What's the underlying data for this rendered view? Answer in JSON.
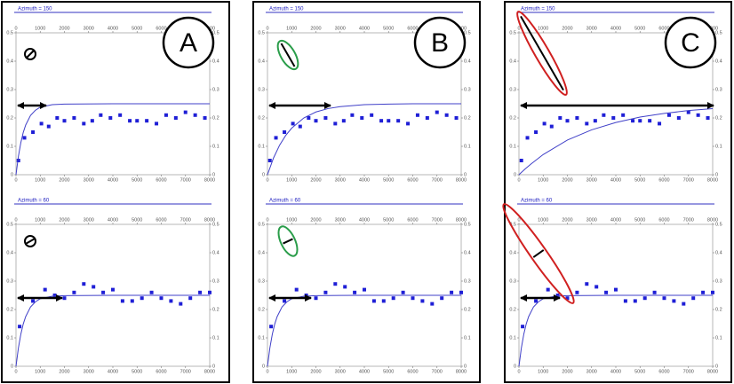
{
  "panel_labels": [
    "A",
    "B",
    "C"
  ],
  "chart_data": [
    {
      "type": "scatter",
      "title": "Azimuth = 150",
      "xlim": [
        0,
        8000
      ],
      "xticks": [
        0,
        1000,
        2000,
        3000,
        4000,
        5000,
        6000,
        7000,
        8000
      ],
      "ylim": [
        0,
        0.5
      ],
      "yticks": [
        0,
        0.1,
        0.2,
        0.3,
        0.4,
        0.5
      ],
      "y2lim": [
        0,
        0.5
      ],
      "y2ticks": [
        0,
        0.1,
        0.2,
        0.3,
        0.4,
        0.5
      ],
      "series": [
        {
          "style": "markers",
          "color": "#1f1fd6",
          "x": [
            100,
            350,
            700,
            1050,
            1350,
            1700,
            2000,
            2400,
            2800,
            3150,
            3500,
            3900,
            4300,
            4700,
            5000,
            5400,
            5800,
            6200,
            6600,
            7000,
            7400,
            7800
          ],
          "values": [
            0.05,
            0.13,
            0.15,
            0.18,
            0.17,
            0.2,
            0.19,
            0.2,
            0.18,
            0.19,
            0.21,
            0.2,
            0.21,
            0.19,
            0.19,
            0.19,
            0.18,
            0.21,
            0.2,
            0.22,
            0.21,
            0.2
          ]
        },
        {
          "style": "line",
          "color": "#4040c8",
          "x": [
            0,
            100,
            200,
            300,
            400,
            600,
            800,
            1000,
            1500,
            2000,
            4000,
            8000
          ],
          "values": [
            0,
            0.065,
            0.113,
            0.149,
            0.175,
            0.209,
            0.227,
            0.238,
            0.247,
            0.249,
            0.25,
            0.25
          ]
        }
      ]
    },
    {
      "type": "scatter",
      "title": "Azimuth = 60",
      "xlim": [
        0,
        8000
      ],
      "xticks": [
        0,
        1000,
        2000,
        3000,
        4000,
        5000,
        6000,
        7000,
        8000
      ],
      "ylim": [
        0,
        0.5
      ],
      "yticks": [
        0,
        0.1,
        0.2,
        0.3,
        0.4,
        0.5
      ],
      "y2lim": [
        0,
        0.5
      ],
      "y2ticks": [
        0,
        0.1,
        0.2,
        0.3,
        0.4,
        0.5
      ],
      "series": [
        {
          "style": "markers",
          "color": "#1f1fd6",
          "x": [
            150,
            700,
            1200,
            1600,
            2000,
            2400,
            2800,
            3200,
            3600,
            4000,
            4400,
            4800,
            5200,
            5600,
            6000,
            6400,
            6800,
            7200,
            7600,
            8000
          ],
          "values": [
            0.14,
            0.23,
            0.27,
            0.25,
            0.24,
            0.26,
            0.29,
            0.28,
            0.26,
            0.27,
            0.23,
            0.23,
            0.24,
            0.26,
            0.24,
            0.23,
            0.22,
            0.24,
            0.26,
            0.26
          ]
        },
        {
          "style": "line",
          "color": "#4040c8",
          "x": [
            0,
            100,
            200,
            300,
            400,
            600,
            800,
            1000,
            1500,
            2000,
            4000,
            8000
          ],
          "values": [
            0,
            0.065,
            0.113,
            0.149,
            0.175,
            0.209,
            0.227,
            0.238,
            0.247,
            0.249,
            0.25,
            0.25
          ]
        }
      ]
    },
    {
      "type": "scatter",
      "title": "Azimuth = 150",
      "xlim": [
        0,
        8000
      ],
      "xticks": [
        0,
        1000,
        2000,
        3000,
        4000,
        5000,
        6000,
        7000,
        8000
      ],
      "ylim": [
        0,
        0.5
      ],
      "yticks": [
        0,
        0.1,
        0.2,
        0.3,
        0.4,
        0.5
      ],
      "y2lim": [
        0,
        0.5
      ],
      "y2ticks": [
        0,
        0.1,
        0.2,
        0.3,
        0.4,
        0.5
      ],
      "series": [
        {
          "style": "markers",
          "color": "#1f1fd6",
          "x": [
            100,
            350,
            700,
            1050,
            1350,
            1700,
            2000,
            2400,
            2800,
            3150,
            3500,
            3900,
            4300,
            4700,
            5000,
            5400,
            5800,
            6200,
            6600,
            7000,
            7400,
            7800
          ],
          "values": [
            0.05,
            0.13,
            0.15,
            0.18,
            0.17,
            0.2,
            0.19,
            0.2,
            0.18,
            0.19,
            0.21,
            0.2,
            0.21,
            0.19,
            0.19,
            0.19,
            0.18,
            0.21,
            0.2,
            0.22,
            0.21,
            0.2
          ]
        },
        {
          "style": "line",
          "color": "#4040c8",
          "x": [
            0,
            250,
            500,
            750,
            1000,
            1500,
            2000,
            2500,
            3000,
            4000,
            5000,
            6000,
            8000
          ],
          "values": [
            0,
            0.059,
            0.104,
            0.138,
            0.164,
            0.2,
            0.221,
            0.233,
            0.24,
            0.247,
            0.249,
            0.25,
            0.25
          ]
        }
      ]
    },
    {
      "type": "scatter",
      "title": "Azimuth = 60",
      "xlim": [
        0,
        8000
      ],
      "xticks": [
        0,
        1000,
        2000,
        3000,
        4000,
        5000,
        6000,
        7000,
        8000
      ],
      "ylim": [
        0,
        0.5
      ],
      "yticks": [
        0,
        0.1,
        0.2,
        0.3,
        0.4,
        0.5
      ],
      "y2lim": [
        0,
        0.5
      ],
      "y2ticks": [
        0,
        0.1,
        0.2,
        0.3,
        0.4,
        0.5
      ],
      "series": [
        {
          "style": "markers",
          "color": "#1f1fd6",
          "x": [
            150,
            700,
            1200,
            1600,
            2000,
            2400,
            2800,
            3200,
            3600,
            4000,
            4400,
            4800,
            5200,
            5600,
            6000,
            6400,
            6800,
            7200,
            7600,
            8000
          ],
          "values": [
            0.14,
            0.23,
            0.27,
            0.25,
            0.24,
            0.26,
            0.29,
            0.28,
            0.26,
            0.27,
            0.23,
            0.23,
            0.24,
            0.26,
            0.24,
            0.23,
            0.22,
            0.24,
            0.26,
            0.26
          ]
        },
        {
          "style": "line",
          "color": "#4040c8",
          "x": [
            0,
            100,
            200,
            300,
            400,
            600,
            800,
            1000,
            1500,
            2000,
            4000,
            8000
          ],
          "values": [
            0,
            0.065,
            0.113,
            0.149,
            0.175,
            0.209,
            0.227,
            0.238,
            0.247,
            0.249,
            0.25,
            0.25
          ]
        }
      ]
    },
    {
      "type": "scatter",
      "title": "Azimuth = 150",
      "xlim": [
        0,
        8000
      ],
      "xticks": [
        0,
        1000,
        2000,
        3000,
        4000,
        5000,
        6000,
        7000,
        8000
      ],
      "ylim": [
        0,
        0.5
      ],
      "yticks": [
        0,
        0.1,
        0.2,
        0.3,
        0.4,
        0.5
      ],
      "y2lim": [
        0,
        0.5
      ],
      "y2ticks": [
        0,
        0.1,
        0.2,
        0.3,
        0.4,
        0.5
      ],
      "series": [
        {
          "style": "markers",
          "color": "#1f1fd6",
          "x": [
            100,
            350,
            700,
            1050,
            1350,
            1700,
            2000,
            2400,
            2800,
            3150,
            3500,
            3900,
            4300,
            4700,
            5000,
            5400,
            5800,
            6200,
            6600,
            7000,
            7400,
            7800
          ],
          "values": [
            0.05,
            0.13,
            0.15,
            0.18,
            0.17,
            0.2,
            0.19,
            0.2,
            0.18,
            0.19,
            0.21,
            0.2,
            0.21,
            0.19,
            0.19,
            0.19,
            0.18,
            0.21,
            0.2,
            0.22,
            0.21,
            0.2
          ]
        },
        {
          "style": "line",
          "color": "#4040c8",
          "x": [
            0,
            250,
            500,
            1000,
            2000,
            3000,
            4000,
            5000,
            6000,
            7000,
            8000
          ],
          "values": [
            0,
            0.02,
            0.038,
            0.071,
            0.122,
            0.158,
            0.184,
            0.203,
            0.216,
            0.226,
            0.233
          ]
        }
      ]
    },
    {
      "type": "scatter",
      "title": "Azimuth = 60",
      "xlim": [
        0,
        8000
      ],
      "xticks": [
        0,
        1000,
        2000,
        3000,
        4000,
        5000,
        6000,
        7000,
        8000
      ],
      "ylim": [
        0,
        0.5
      ],
      "yticks": [
        0,
        0.1,
        0.2,
        0.3,
        0.4,
        0.5
      ],
      "y2lim": [
        0,
        0.5
      ],
      "y2ticks": [
        0,
        0.1,
        0.2,
        0.3,
        0.4,
        0.5
      ],
      "series": [
        {
          "style": "markers",
          "color": "#1f1fd6",
          "x": [
            150,
            700,
            1200,
            1600,
            2000,
            2400,
            2800,
            3200,
            3600,
            4000,
            4400,
            4800,
            5200,
            5600,
            6000,
            6400,
            6800,
            7200,
            7600,
            8000
          ],
          "values": [
            0.14,
            0.23,
            0.27,
            0.25,
            0.24,
            0.26,
            0.29,
            0.28,
            0.26,
            0.27,
            0.23,
            0.23,
            0.24,
            0.26,
            0.24,
            0.23,
            0.22,
            0.24,
            0.26,
            0.26
          ]
        },
        {
          "style": "line",
          "color": "#4040c8",
          "x": [
            0,
            100,
            200,
            300,
            400,
            600,
            800,
            1000,
            1500,
            2000,
            4000,
            8000
          ],
          "values": [
            0,
            0.065,
            0.113,
            0.149,
            0.175,
            0.209,
            0.227,
            0.238,
            0.247,
            0.249,
            0.25,
            0.25
          ]
        }
      ]
    }
  ]
}
